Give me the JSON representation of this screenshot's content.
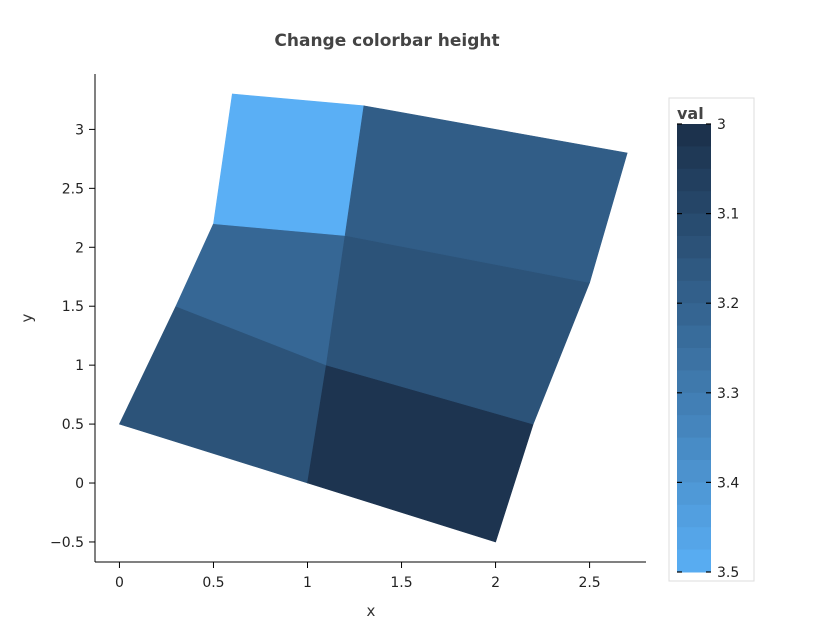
{
  "chart_data": {
    "type": "heatmap",
    "title": "Change colorbar height",
    "xlabel": "x",
    "ylabel": "y",
    "xlim": [
      -0.13,
      2.8
    ],
    "ylim": [
      -0.67,
      3.47
    ],
    "x_ticks": [
      "0",
      "0.5",
      "1",
      "1.5",
      "2",
      "2.5"
    ],
    "y_ticks": [
      "−0.5",
      "0",
      "0.5",
      "1",
      "1.5",
      "2",
      "2.5",
      "3"
    ],
    "grid": false,
    "cells": [
      {
        "corners": [
          [
            0,
            0.5
          ],
          [
            1,
            0
          ],
          [
            1.1,
            1
          ],
          [
            0.3,
            1.5
          ]
        ],
        "val": 3.14
      },
      {
        "corners": [
          [
            1,
            0
          ],
          [
            2,
            -0.5
          ],
          [
            2.2,
            0.5
          ],
          [
            1.1,
            1
          ]
        ],
        "val": 3.02
      },
      {
        "corners": [
          [
            0.3,
            1.5
          ],
          [
            1.1,
            1
          ],
          [
            1.2,
            2.1
          ],
          [
            0.5,
            2.2
          ]
        ],
        "val": 3.22
      },
      {
        "corners": [
          [
            1.1,
            1
          ],
          [
            2.2,
            0.5
          ],
          [
            2.5,
            1.7
          ],
          [
            1.2,
            2.1
          ]
        ],
        "val": 3.14
      },
      {
        "corners": [
          [
            0.5,
            2.2
          ],
          [
            1.2,
            2.1
          ],
          [
            1.3,
            3.2
          ],
          [
            0.6,
            3.3
          ]
        ],
        "val": 3.5
      },
      {
        "corners": [
          [
            1.2,
            2.1
          ],
          [
            2.5,
            1.7
          ],
          [
            2.7,
            2.8
          ],
          [
            1.3,
            3.2
          ]
        ],
        "val": 3.18
      }
    ],
    "colorbar": {
      "title": "val",
      "range": [
        3,
        3.5
      ],
      "reversed": true,
      "ticks": [
        "3",
        "3.1",
        "3.2",
        "3.3",
        "3.4",
        "3.5"
      ],
      "color_low": "#1a2f49",
      "color_high": "#5aaff5",
      "steps": 20
    }
  }
}
